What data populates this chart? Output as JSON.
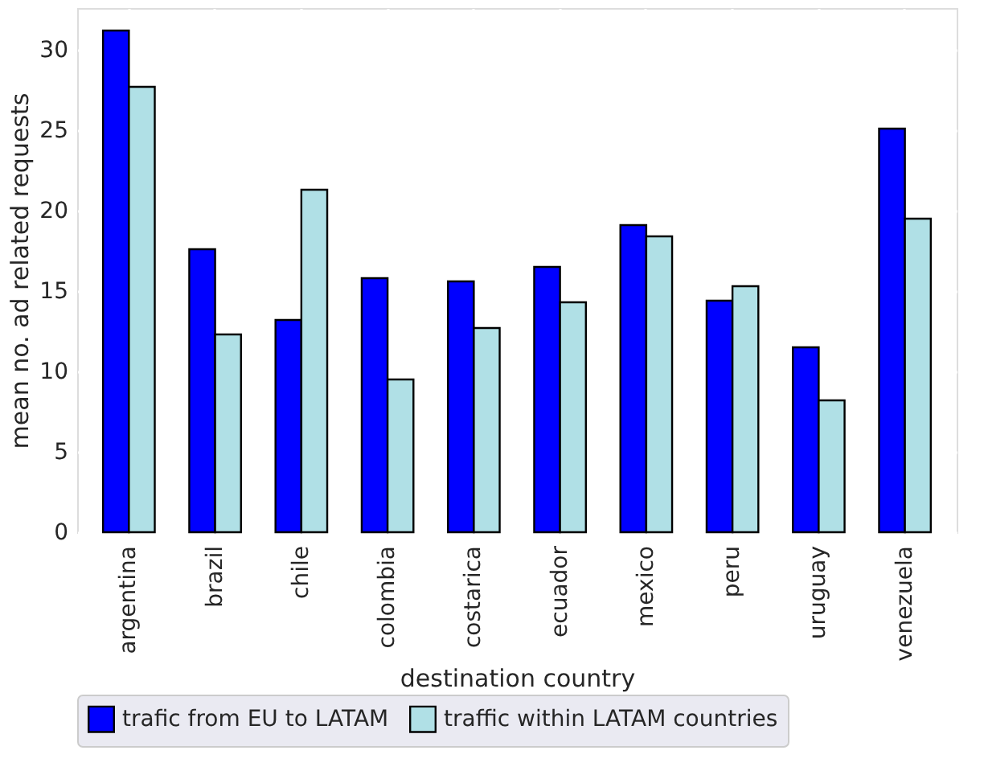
{
  "chart_data": {
    "type": "bar",
    "xlabel": "destination country",
    "ylabel": "mean no. ad related requests",
    "categories": [
      "argentina",
      "brazil",
      "chile",
      "colombia",
      "costarica",
      "ecuador",
      "mexico",
      "peru",
      "uruguay",
      "venezuela"
    ],
    "series": [
      {
        "name": "trafic from EU to LATAM",
        "color": "#0000ff",
        "values": [
          31.2,
          17.6,
          13.2,
          15.8,
          15.6,
          16.5,
          19.1,
          14.4,
          11.5,
          25.1
        ]
      },
      {
        "name": "traffic within LATAM countries",
        "color": "#b0e0e6",
        "values": [
          27.7,
          12.3,
          21.3,
          9.5,
          12.7,
          14.3,
          18.4,
          15.3,
          8.2,
          19.5
        ]
      }
    ],
    "ylim": [
      0,
      32.6
    ],
    "yticks": [
      0,
      5,
      10,
      15,
      20,
      25,
      30
    ],
    "grid": true,
    "legend": "bottom"
  }
}
